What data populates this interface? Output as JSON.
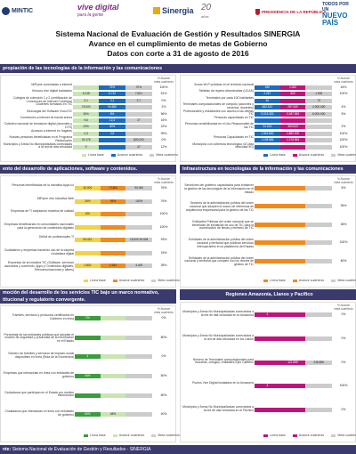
{
  "logos": {
    "mintic": "MINTIC",
    "vive_main": "vive digital",
    "vive_sub": "para la gente",
    "sinergia": "Sinergia",
    "twenty": "20",
    "twenty_sub": "años",
    "presidencia": "PRESIDENCIA DE LA REPÚBLICA",
    "todos_top": "TODOS POR UN",
    "todos_main": "NUEVO PAÍS"
  },
  "title": {
    "line1": "Sistema Nacional de Evaluación de Gestión y Resultados SINERGIA",
    "line2": "Avance en el cumplimiento de metas de Gobierno",
    "line3": "Datos con corte a 31 de agosto de 2016"
  },
  "colors": {
    "band": "#3a3a6e",
    "green": "#3a9d3a",
    "lightgreen": "#c9e4b4",
    "yellow": "#f0d34a",
    "orange": "#f08a1c",
    "magenta": "#c0147c",
    "blue": "#1a6cc0",
    "gray": "#cccccc"
  },
  "legend": {
    "base": "Línea base",
    "advance": "Avance cuatrienio",
    "goal": "Meta cuatrienio"
  },
  "pct_header": "% Avance meta cuatrienio",
  "sections": {
    "s1": "propiación de las tecnologías de la información y las comunicaciones",
    "s2": "ento del desarrollo de aplicaciones, software y contenidos.",
    "s3": "Infraestructura en tecnologías de la información y las comunicaciones",
    "s4": "moción del desarrollo de los servicios TIC bajo un marco normativo, titucional y regulatorio convergente.",
    "s5": "Regiones Amazonía, Llanos y Pacífico"
  },
  "panel1": [
    {
      "label": "MiPyme conectadas a internet",
      "base": "",
      "adv": "75%",
      "goal": "70%",
      "pct": "100%"
    },
    {
      "label": "Kioscos vive digital instalados",
      "base": "6.248",
      "adv": "6.712",
      "goal": "7.621",
      "pct": "51%"
    },
    {
      "label": "Colegios de colección 1 y 2 (certificación de Conexiones de Internet Colombia)",
      "base": "3,1",
      "adv": "3,1",
      "goal": "2,7",
      "pct": "0%"
    },
    {
      "label": "Docentes formados en TIC",
      "base": "75.000",
      "adv": "94.669",
      "goal": "",
      "pct": "2%"
    },
    {
      "label": "Descargas del Software CiscoTIC",
      "base": "30%",
      "adv": "8%",
      "goal": "",
      "pct": "96%"
    },
    {
      "label": "Conexiones a internet de banda ancha",
      "base": "9,6",
      "adv": "12,3",
      "goal": "27",
      "pct": "16%"
    },
    {
      "label": "Colectivo nacional de formación digital (docentes y DTS)",
      "base": "23%",
      "adv": "40%",
      "goal": "",
      "pct": "22%"
    },
    {
      "label": "Accesos a Internet en hogares",
      "base": "0,3",
      "adv": "0,9",
      "goal": "",
      "pct": "99%"
    },
    {
      "label": "Nuevas personas beneficiadas en el Programa Redvolución",
      "base": "39.178",
      "adv": "",
      "goal": "820.000",
      "pct": "0%"
    },
    {
      "label": "Municipios y Áreas No Municipalizadas conectadas a la red de alta velocidad",
      "base": "5",
      "adv": "",
      "goal": "47",
      "pct": "12%"
    }
  ],
  "panel2": [
    {
      "label": "Zonas Wi-Fi públicas en el territorio nacional",
      "base": "430",
      "adv": "1.000",
      "goal": "",
      "pct": "44%"
    },
    {
      "label": "Tabletas de reparto diseminadas (UCAS)",
      "base": "2.267",
      "adv": "600",
      "goal": "1.006",
      "pct": "100%"
    },
    {
      "label": "Terminales por cada 100 habitantes",
      "base": "54",
      "adv": "",
      "goal": "70",
      "pct": ""
    },
    {
      "label": "Terminales computacionales de cómputo (acciones y servicios, docentes)",
      "base": "462.102",
      "adv": "297.000",
      "goal": "2.000.000",
      "pct": "4%"
    },
    {
      "label": "Profesionales y estudiantes con acceso a las ofertas TIC",
      "base": "9.213.253",
      "adv": "3.187.553",
      "goal": "8.000.000",
      "pct": "5%"
    },
    {
      "label": "Personas capacitadas en TIC",
      "base": "",
      "adv": "",
      "goal": "",
      "pct": ""
    },
    {
      "label": "Personas sensibilizadas en el Uso Responsable de las TIC",
      "base": "31.313",
      "adv": "453.523",
      "goal": "",
      "pct": "2%"
    },
    {
      "label": "",
      "base": "1.063.800",
      "adv": "1.880.000",
      "goal": "",
      "pct": "100%"
    },
    {
      "label": "Personas Capacitadas en TIC",
      "base": "1.198.886",
      "adv": "1.378.894",
      "goal": "",
      "pct": "100%"
    },
    {
      "label": "Municipios con cobertura tecnológica 4G (alta velocidad 4G)",
      "base": "",
      "adv": "",
      "goal": "",
      "pct": "100%"
    }
  ],
  "panel3": [
    {
      "label": "Personas beneficiadas de la Iniciativa Apps.co",
      "base": "30.000",
      "adv": "70.853",
      "goal": "90.000",
      "pct": "76%"
    },
    {
      "label": "MiPyme vive Iniciativa Web",
      "base": "26%",
      "adv": "95%",
      "goal": "100%",
      "pct": "76%"
    },
    {
      "label": "Empresas de TI adoptando modelos de calidad",
      "base": "200",
      "adv": "",
      "goal": "",
      "pct": "100%"
    },
    {
      "label": "Empresas beneficiarias en comunidades nacionales para la generación de contenidos digitales",
      "base": "",
      "adv": "",
      "goal": "",
      "pct": "100%"
    },
    {
      "label": "Déficit de profesionales TI",
      "base": "94.431",
      "adv": "",
      "goal": "15.000 26.504",
      "pct": "93%"
    },
    {
      "label": "Ciudadanos y empresas haciendo uso de la carpeta ciudadana digital",
      "base": "",
      "adv": "",
      "goal": "",
      "pct": "15%"
    },
    {
      "label": "Empresas de la industria TIC (Software, servicios asociados y contenido, Apps y Contenidos digitales, Telecomunicaciones y afines)",
      "base": "1.800",
      "adv": "2.453",
      "goal": "3.400",
      "pct": "35%"
    }
  ],
  "panel4": [
    {
      "label": "Servidores del gobierno capacitados para fortalecer la gestión de las tecnologías de la información en el estado",
      "base": "",
      "adv": "",
      "goal": "",
      "pct": "8%"
    },
    {
      "label": "Sectores de la administración pública del orden nacional que adopten el marco de referencia de arquitectura empresarial para la gestión de las TIC",
      "base": "",
      "adv": "",
      "goal": "",
      "pct": "36%"
    },
    {
      "label": "Entidades Públicas del orden nacional que se benefician de iniciativas de uso de TIC para la coordinación de temas y territorio de TIC",
      "base": "",
      "adv": "",
      "goal": "",
      "pct": "36%"
    },
    {
      "label": "Entidades de la administración pública del orden nacional y territorial que publican servicios interoperables en la plataforma del Estado",
      "base": "",
      "adv": "",
      "goal": "",
      "pct": "100%"
    },
    {
      "label": "Entidades de la administración pública del orden nacional y territorial que cumplen con los niveles de gestión de TIC",
      "base": "",
      "adv": "",
      "goal": "",
      "pct": "80%"
    }
  ],
  "panel5": [
    {
      "label": "Trámites, servicios y productos certificados en Gobierno en línea",
      "base": "710",
      "adv": "",
      "goal": "",
      "pct": "0%"
    },
    {
      "label": "Porcentaje de las entidades públicas que adoptan el modelo de seguridad y privacidad de la información en el Estado",
      "base": "",
      "adv": "",
      "goal": "",
      "pct": "80%"
    },
    {
      "label": "Número de trámites y servicios de impacto social disponibles en línea (Ruta de la Excelencia)",
      "base": "4",
      "adv": "",
      "goal": "",
      "pct": "0%"
    },
    {
      "label": "Empresas que interactúan en línea con entidades de gobierno",
      "base": "46%",
      "adv": "",
      "goal": "",
      "pct": "50%"
    },
    {
      "label": "Ciudadanos que participan en el Estado por medios electrónicos",
      "base": "",
      "adv": "",
      "goal": "",
      "pct": "80%"
    },
    {
      "label": "Ciudadanos que interactúan en línea con entidades de gobierno",
      "base": "60%",
      "adv": "68%",
      "goal": "",
      "pct": "40%"
    }
  ],
  "panel6": [
    {
      "label": "Municipios y Áreas No Municipalizadas conectados a la red de alta velocidad en la Amazonía",
      "base": "4",
      "adv": "",
      "goal": "",
      "pct": "0%"
    },
    {
      "label": "Municipios y Áreas No Municipalizadas conectados a la red de alta velocidad en los Llanos",
      "base": "",
      "adv": "",
      "goal": "",
      "pct": "0%"
    },
    {
      "label": "Número de Terminales computacionales para escuelas, colegios, entidades Ejes Cafetero",
      "base": "",
      "adv": "121.899",
      "goal": "236.896",
      "pct": "0%"
    },
    {
      "label": "Puntos Vive Digital instalados en la Amazonía",
      "base": "3",
      "adv": "",
      "goal": "",
      "pct": "100%"
    },
    {
      "label": "Municipios y Áreas No Municipalizadas conectados a la red de alta velocidad en el Pacífico",
      "base": "",
      "adv": "",
      "goal": "",
      "pct": "0%"
    }
  ],
  "footer": {
    "label": "nte:",
    "text": "Sistema Nacional de Evaluación de Gestión y Resultados - SINERGIA"
  }
}
